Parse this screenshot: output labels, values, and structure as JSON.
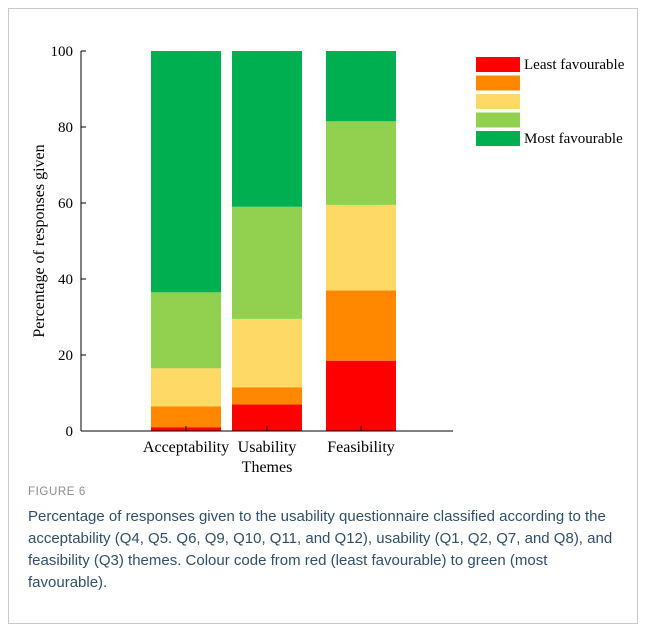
{
  "figure": {
    "label": "FIGURE 6",
    "caption": "Percentage of responses given to the usability questionnaire classified according to the acceptability (Q4, Q5. Q6, Q9, Q10, Q11, and Q12), usability (Q1, Q2, Q7, and Q8), and feasibility (Q3) themes. Colour code from red (least favourable) to green (most favourable)."
  },
  "chart_data": {
    "type": "bar",
    "stacked": true,
    "categories": [
      "Acceptability",
      "Usability",
      "Feasibility"
    ],
    "xlabel": "Themes",
    "ylabel": "Percentage of responses given",
    "ylim": [
      0,
      100
    ],
    "yticks": [
      0,
      20,
      40,
      60,
      80,
      100
    ],
    "grid": false,
    "legend_position": "top-right",
    "series": [
      {
        "name": "Least favourable",
        "color": "#ff0000",
        "values": [
          1.0,
          7.0,
          18.5
        ]
      },
      {
        "name": "",
        "color": "#ff8800",
        "values": [
          5.5,
          4.5,
          18.5
        ]
      },
      {
        "name": "",
        "color": "#ffd966",
        "values": [
          10.0,
          18.0,
          22.5
        ]
      },
      {
        "name": "",
        "color": "#92d050",
        "values": [
          20.0,
          29.5,
          22.0
        ]
      },
      {
        "name": "Most favourable",
        "color": "#00b050",
        "values": [
          63.5,
          41.0,
          18.5
        ]
      }
    ]
  }
}
